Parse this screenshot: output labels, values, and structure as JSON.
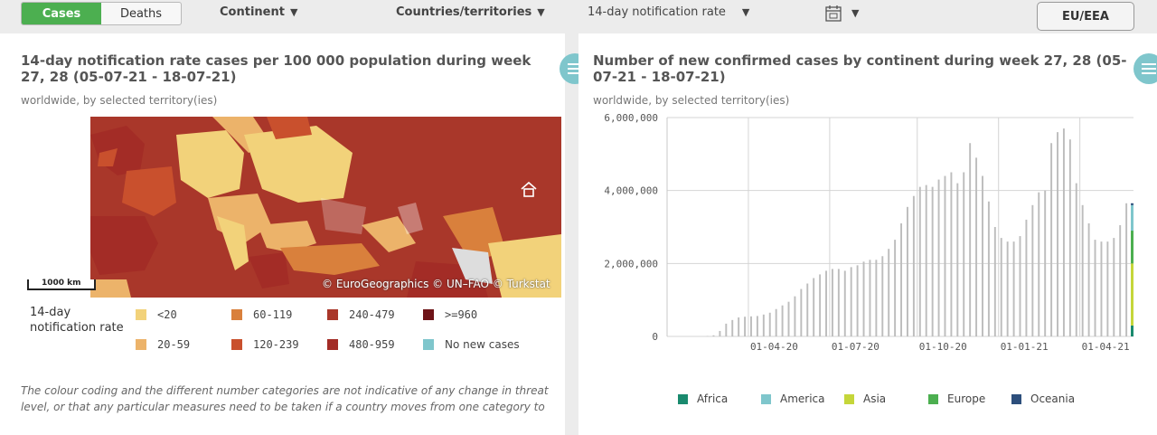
{
  "topbar": {
    "tabs": [
      {
        "label": "Cases",
        "active": true
      },
      {
        "label": "Deaths",
        "active": false
      }
    ],
    "continent_label": "Continent",
    "countries_label": "Countries/territories",
    "metric_label": "14-day notification rate",
    "calendar_icon": "calendar-icon",
    "eu_button": "EU/EEA"
  },
  "map_panel": {
    "title": "14-day notification rate cases per 100 000 population during week 27, 28 (05-07-21 - 18-07-21)",
    "subtitle": "worldwide, by selected territory(ies)",
    "copyright": "© EuroGeographics © UN–FAO © Turkstat",
    "scale_label": "1000 km",
    "legend_title": "14-day notification rate",
    "legend": [
      {
        "label": "<20",
        "color": "#f2d27a"
      },
      {
        "label": "60-119",
        "color": "#d9803c"
      },
      {
        "label": "240-479",
        "color": "#a9372a"
      },
      {
        "label": ">=960",
        "color": "#6e1418"
      },
      {
        "label": "20-59",
        "color": "#ecb36a"
      },
      {
        "label": "120-239",
        "color": "#c9502d"
      },
      {
        "label": "480-959",
        "color": "#a32c26"
      },
      {
        "label": "No new cases",
        "color": "#7fc6cc"
      }
    ],
    "disclaimer": "The colour coding and the different number categories are not indicative of any change in threat level, or that any particular measures need to be taken if a country moves from one category to"
  },
  "chart_panel": {
    "title": "Number of new confirmed cases by continent during week 27, 28 (05-07-21 - 18-07-21)",
    "subtitle": "worldwide, by selected territory(ies)"
  },
  "chart_data": {
    "type": "bar",
    "ylim": [
      0,
      6000000
    ],
    "yticks": [
      0,
      2000000,
      4000000,
      6000000
    ],
    "ytick_labels": [
      "0",
      "2,000,000",
      "4,000,000",
      "6,000,000"
    ],
    "xtick_labels": [
      "01-04-20",
      "01-07-20",
      "01-10-20",
      "01-01-21",
      "01-04-21"
    ],
    "grid": true,
    "legend_position": "bottom",
    "series": [
      {
        "name": "Africa",
        "color": "#1a8a6e"
      },
      {
        "name": "America",
        "color": "#7fc6cc"
      },
      {
        "name": "Asia",
        "color": "#c5d63a"
      },
      {
        "name": "Europe",
        "color": "#4caf50"
      },
      {
        "name": "Oceania",
        "color": "#2d4f7c"
      }
    ],
    "weekly_totals": [
      0,
      0,
      0,
      0,
      0,
      0,
      10000,
      30000,
      150000,
      350000,
      450000,
      520000,
      540000,
      550000,
      560000,
      600000,
      650000,
      750000,
      850000,
      950000,
      1100000,
      1300000,
      1450000,
      1600000,
      1700000,
      1800000,
      1850000,
      1850000,
      1800000,
      1900000,
      1950000,
      2050000,
      2100000,
      2100000,
      2200000,
      2400000,
      2650000,
      3100000,
      3550000,
      3850000,
      4100000,
      4150000,
      4100000,
      4300000,
      4400000,
      4500000,
      4200000,
      4500000,
      5300000,
      4900000,
      4400000,
      3700000,
      3000000,
      2700000,
      2600000,
      2600000,
      2750000,
      3200000,
      3600000,
      3950000,
      4000000,
      5300000,
      5600000,
      5700000,
      5400000,
      4200000,
      3600000,
      3100000,
      2650000,
      2600000,
      2600000,
      2700000,
      3050000,
      3650000
    ],
    "last_week_breakdown": [
      {
        "name": "Africa",
        "value": 300000
      },
      {
        "name": "Asia",
        "value": 1700000
      },
      {
        "name": "Europe",
        "value": 900000
      },
      {
        "name": "America",
        "value": 700000
      },
      {
        "name": "Oceania",
        "value": 50000
      }
    ]
  }
}
